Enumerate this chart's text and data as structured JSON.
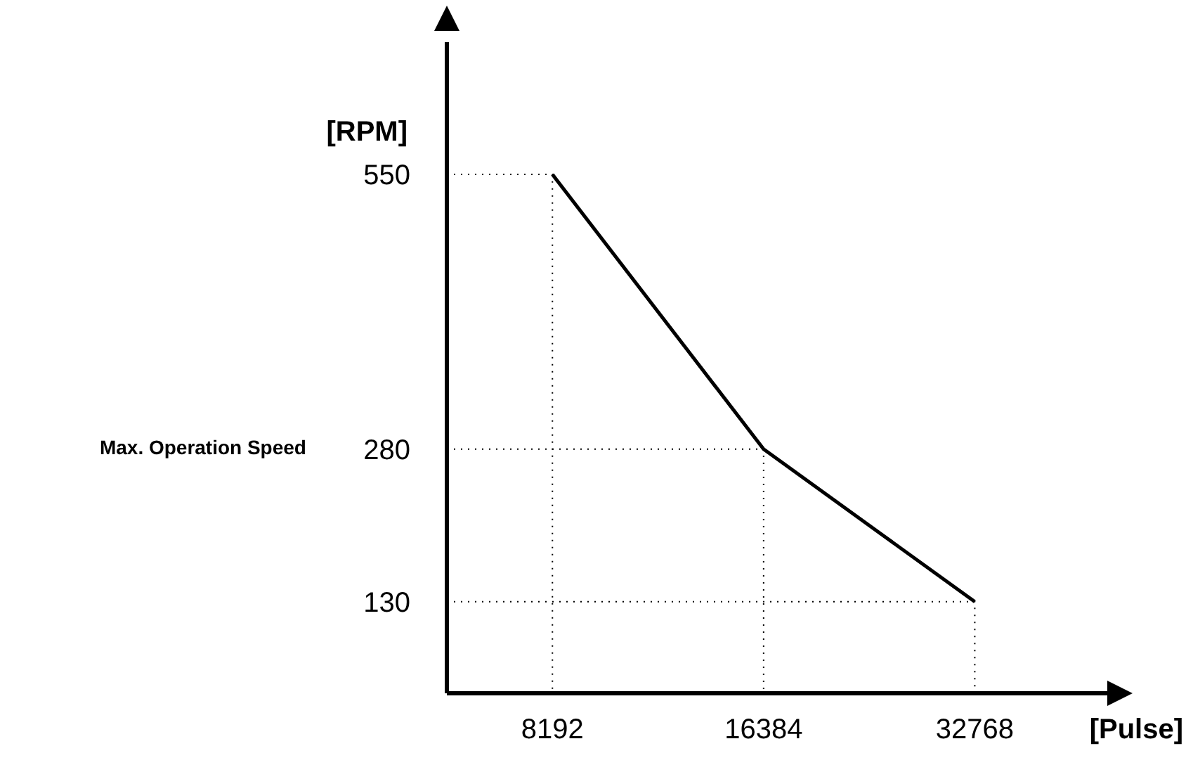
{
  "chart_data": {
    "type": "line",
    "xlabel": "[Pulse]",
    "ylabel": "[RPM]",
    "log": "x",
    "xlim": [
      5793,
      53500
    ],
    "xticks": [
      8192,
      16384,
      32768
    ],
    "ylim": [
      40,
      680
    ],
    "yticks": [
      130,
      280,
      550
    ],
    "x": [
      8192,
      16384,
      32768
    ],
    "series": [
      {
        "color": "#000000",
        "values": [
          550,
          280,
          130
        ]
      },
      {
        "color": "#000000",
        "line_style": "dotted",
        "x": [
          5793,
          8192,
          8192
        ],
        "values": [
          550,
          550,
          40
        ]
      },
      {
        "color": "#000000",
        "line_style": "dotted",
        "x": [
          5793,
          16384,
          16384
        ],
        "values": [
          280,
          280,
          40
        ]
      },
      {
        "color": "#000000",
        "line_style": "dotted",
        "x": [
          5793,
          32768,
          32768
        ],
        "values": [
          130,
          130,
          40
        ]
      }
    ],
    "annotations": [
      "Max. Operation Speed"
    ],
    "marker": "none",
    "line_style": "solid"
  }
}
